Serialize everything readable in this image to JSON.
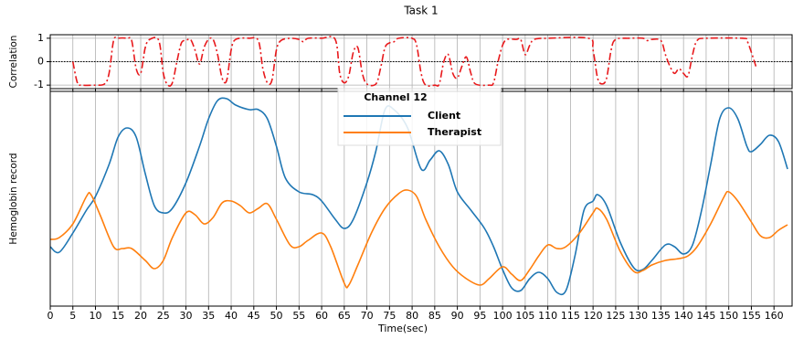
{
  "chart_data": [
    {
      "type": "line",
      "title": "Task 1",
      "ylabel": "Correlation",
      "color": "#e8191c",
      "grid": true,
      "hline": 0,
      "xlim": [
        0,
        164
      ],
      "ylim": [
        -1.15,
        1.15
      ],
      "yticks": [
        -1,
        0,
        1
      ],
      "xticks": [
        0,
        5,
        10,
        15,
        20,
        25,
        30,
        35,
        40,
        45,
        50,
        55,
        60,
        65,
        70,
        75,
        80,
        85,
        90,
        95,
        100,
        105,
        110,
        115,
        120,
        125,
        130,
        135,
        140,
        145,
        150,
        155,
        160
      ],
      "x": [
        5,
        6,
        7,
        10,
        12,
        13,
        14,
        15,
        17,
        18,
        19,
        20,
        21,
        22,
        24,
        25,
        26,
        27,
        28,
        29,
        30,
        31,
        32,
        33,
        34,
        35,
        36,
        37,
        38,
        39,
        40,
        41,
        44,
        46,
        47,
        48,
        49,
        50,
        51,
        53,
        55,
        56,
        57,
        60,
        63,
        64,
        65,
        66,
        67,
        68,
        69,
        70,
        72,
        73,
        74,
        75,
        76,
        77,
        80,
        81,
        82,
        83,
        85,
        86,
        87,
        88,
        89,
        90,
        91,
        92,
        93,
        94,
        97,
        98,
        99,
        100,
        101,
        103,
        104,
        105,
        106,
        107,
        110,
        119,
        120,
        121,
        122,
        123,
        124,
        125,
        128,
        131,
        132,
        133,
        135,
        136,
        137,
        138,
        139,
        140,
        141,
        142,
        143,
        145,
        153,
        154,
        155,
        156
      ],
      "values": [
        0,
        -0.9,
        -1,
        -1,
        -0.95,
        -0.5,
        0.9,
        1,
        1,
        0.9,
        -0.3,
        -0.5,
        0.6,
        0.95,
        0.9,
        -0.5,
        -1,
        -0.9,
        0,
        0.8,
        0.9,
        0.95,
        0.5,
        -0.1,
        0.6,
        0.95,
        0.95,
        0.3,
        -0.7,
        -0.8,
        0.5,
        0.95,
        1,
        0.9,
        -0.3,
        -0.9,
        -0.8,
        0.5,
        0.9,
        1,
        0.95,
        0.85,
        1,
        1,
        0.95,
        -0.5,
        -0.9,
        -0.6,
        0.4,
        0.6,
        -0.5,
        -0.95,
        -0.95,
        -0.3,
        0.6,
        0.8,
        0.85,
        1,
        1,
        0.7,
        -0.5,
        -1,
        -1,
        -0.95,
        0,
        0.3,
        -0.5,
        -0.7,
        -0.2,
        0.2,
        -0.5,
        -0.95,
        -1,
        -0.9,
        0,
        0.7,
        0.95,
        0.95,
        0.95,
        0.3,
        0.7,
        0.95,
        1,
        1,
        0.5,
        -0.7,
        -0.95,
        -0.7,
        0.5,
        0.95,
        1,
        1,
        0.9,
        0.95,
        0.9,
        0.3,
        -0.2,
        -0.5,
        -0.3,
        -0.5,
        -0.6,
        0.3,
        0.9,
        1,
        1,
        0.9,
        0.4,
        -0.2
      ]
    },
    {
      "type": "line",
      "ylabel": "Hemoglobin record",
      "xlabel": "Time(sec)",
      "legend_title": "Channel 12",
      "grid": true,
      "xlim": [
        0,
        164
      ],
      "ylim": [
        0,
        235
      ],
      "xticks": [
        0,
        5,
        10,
        15,
        20,
        25,
        30,
        35,
        40,
        45,
        50,
        55,
        60,
        65,
        70,
        75,
        80,
        85,
        90,
        95,
        100,
        105,
        110,
        115,
        120,
        125,
        130,
        135,
        140,
        145,
        150,
        155,
        160
      ],
      "series": [
        {
          "name": "Client",
          "color": "#1f77b4",
          "x": [
            0,
            2,
            5,
            8,
            10,
            13,
            15,
            17,
            19,
            21,
            23,
            25,
            27,
            30,
            33,
            35,
            37,
            39,
            41,
            44,
            46,
            48,
            50,
            52,
            55,
            58,
            60,
            63,
            65,
            67,
            70,
            72,
            74,
            76,
            79,
            82,
            84,
            86,
            88,
            90,
            93,
            96,
            98,
            100,
            102,
            104,
            106,
            108,
            110,
            112,
            114,
            116,
            118,
            120,
            121,
            123,
            126,
            129,
            131,
            133,
            136,
            138,
            140,
            142,
            144,
            146,
            148,
            150,
            152,
            154,
            155,
            157,
            159,
            161,
            163
          ],
          "values": [
            65,
            59,
            80,
            105,
            120,
            155,
            185,
            195,
            185,
            145,
            110,
            102,
            107,
            135,
            175,
            205,
            225,
            227,
            220,
            215,
            215,
            205,
            175,
            140,
            125,
            122,
            115,
            95,
            85,
            95,
            135,
            170,
            215,
            215,
            195,
            150,
            160,
            170,
            155,
            125,
            105,
            85,
            65,
            40,
            20,
            17,
            30,
            37,
            30,
            15,
            17,
            55,
            105,
            115,
            122,
            110,
            70,
            42,
            40,
            50,
            67,
            65,
            57,
            67,
            105,
            155,
            205,
            217,
            205,
            175,
            169,
            177,
            187,
            180,
            150
          ]
        },
        {
          "name": "Therapist",
          "color": "#ff7f0e",
          "x": [
            0,
            2,
            5,
            8,
            9,
            11,
            14,
            16,
            18,
            21,
            23,
            25,
            27,
            30,
            32,
            34,
            36,
            38,
            40,
            42,
            44,
            46,
            48,
            50,
            53,
            55,
            57,
            60,
            62,
            65,
            66,
            68,
            71,
            74,
            77,
            79,
            81,
            83,
            86,
            89,
            92,
            95,
            97,
            100,
            102,
            104,
            106,
            108,
            110,
            112,
            114,
            117,
            120,
            121,
            123,
            126,
            129,
            131,
            133,
            136,
            139,
            141,
            143,
            146,
            149,
            150,
            152,
            155,
            157,
            159,
            161,
            163
          ],
          "values": [
            73,
            75,
            90,
            120,
            122,
            100,
            65,
            63,
            63,
            50,
            41,
            50,
            75,
            102,
            100,
            90,
            97,
            113,
            115,
            110,
            102,
            107,
            112,
            95,
            67,
            65,
            72,
            80,
            65,
            25,
            23,
            45,
            80,
            107,
            123,
            127,
            120,
            95,
            65,
            43,
            30,
            23,
            30,
            43,
            35,
            28,
            40,
            55,
            67,
            63,
            65,
            80,
            102,
            107,
            95,
            60,
            38,
            39,
            45,
            50,
            52,
            55,
            65,
            90,
            120,
            125,
            115,
            92,
            77,
            75,
            83,
            89
          ]
        }
      ]
    }
  ]
}
